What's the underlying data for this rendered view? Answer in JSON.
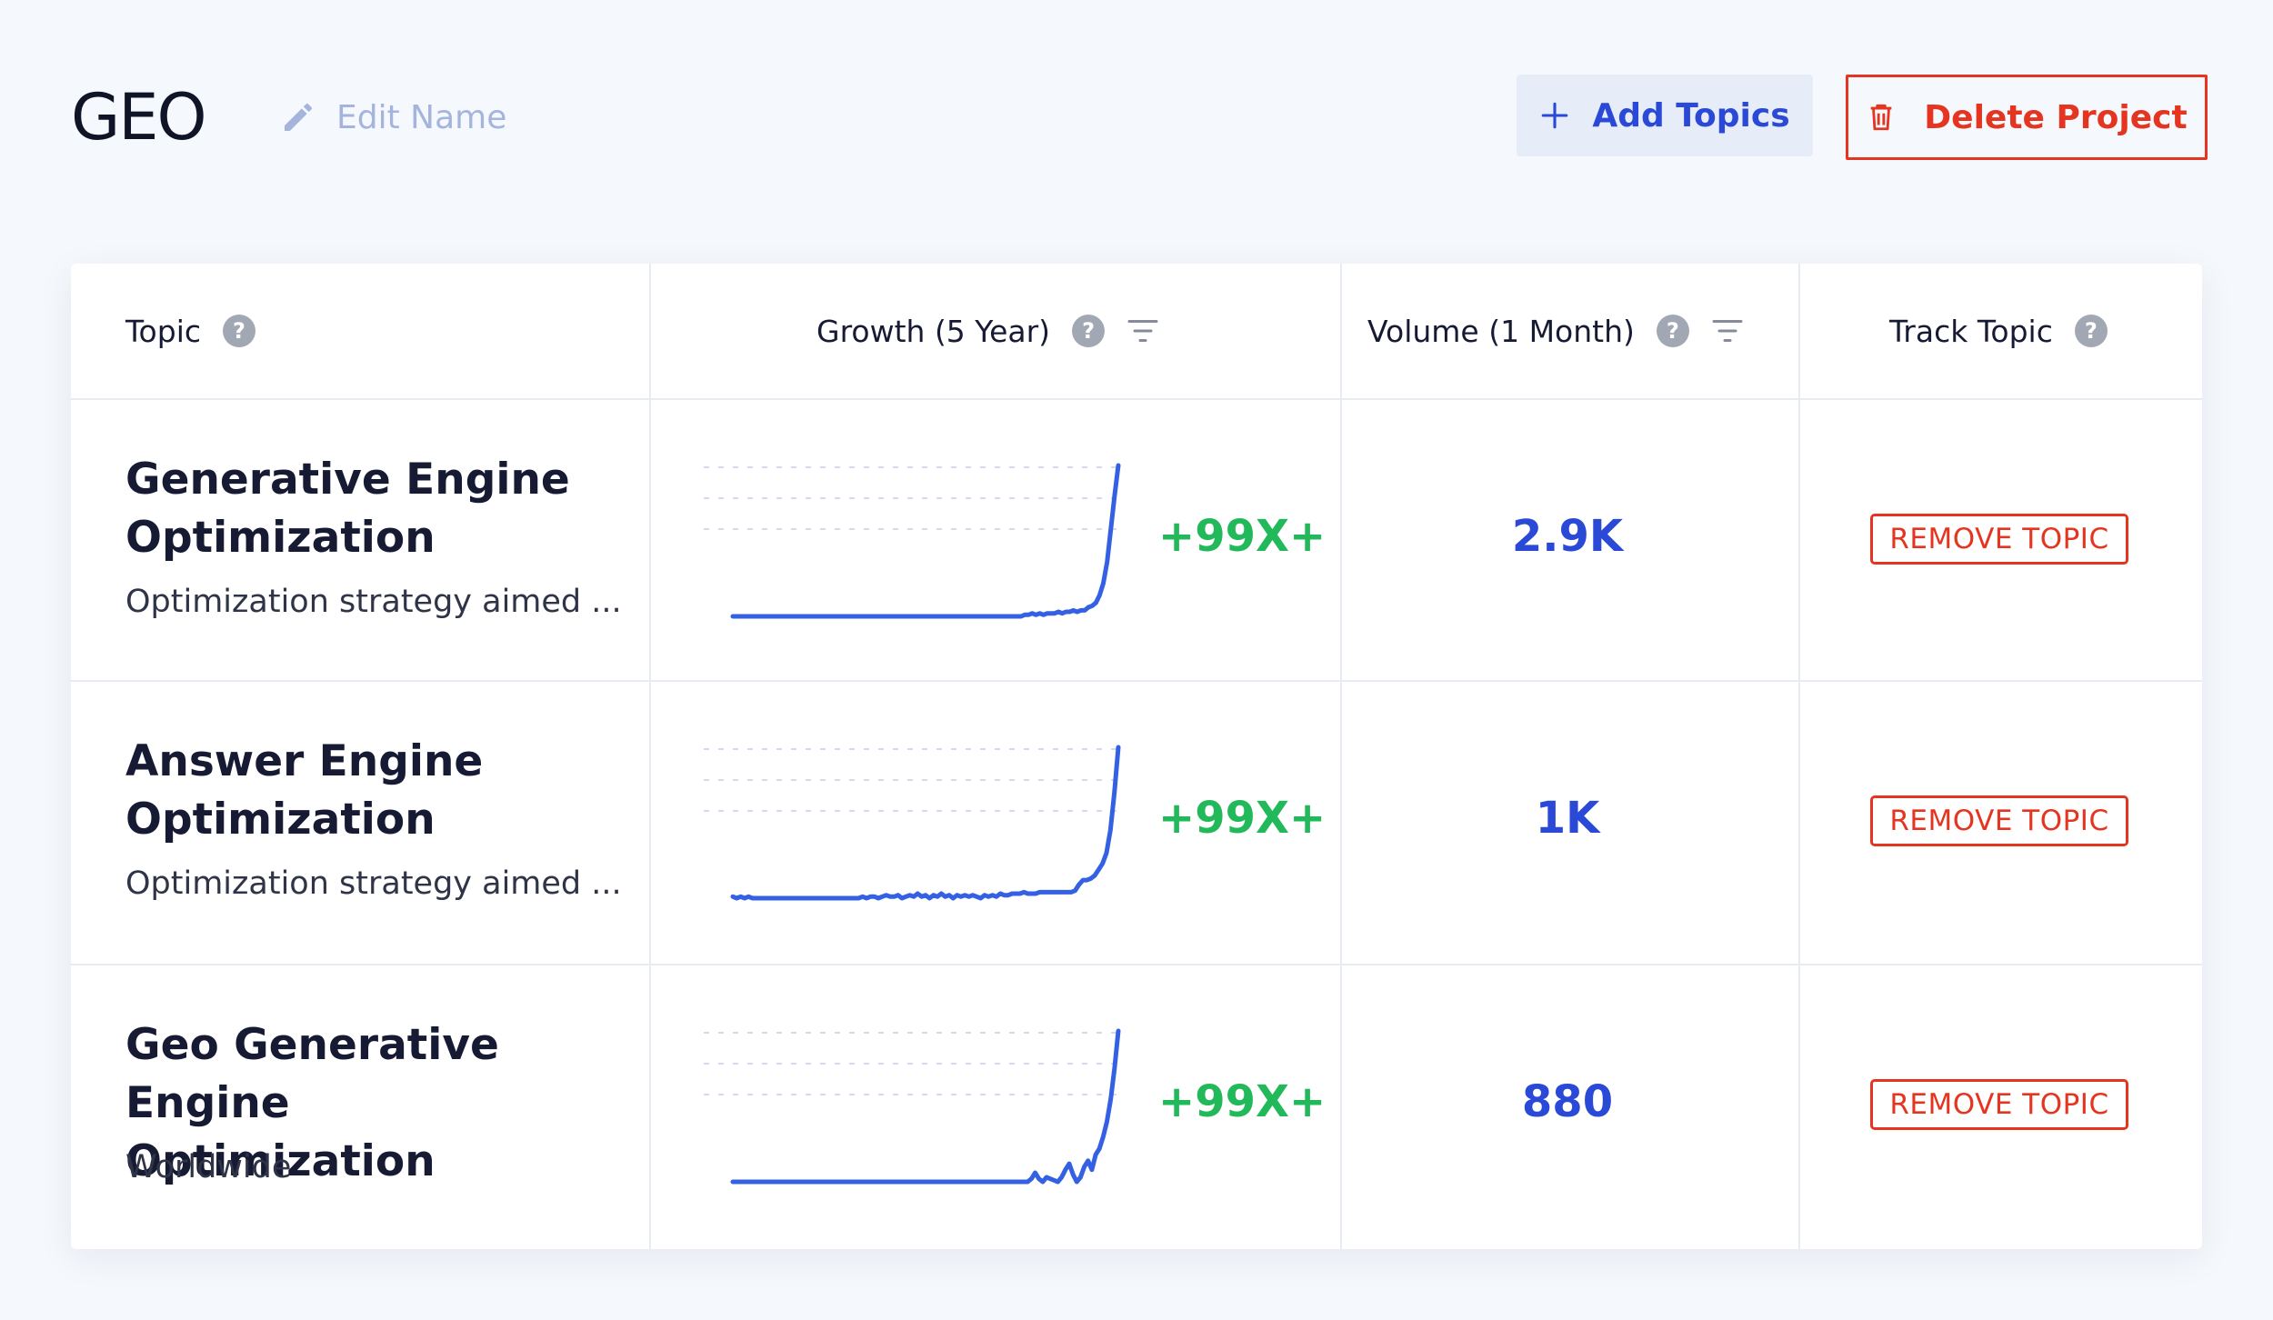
{
  "header": {
    "title": "GEO",
    "edit_name_label": "Edit Name",
    "add_topics_label": "Add Topics",
    "delete_project_label": "Delete Project"
  },
  "table": {
    "columns": {
      "topic": "Topic",
      "growth": "Growth (5 Year)",
      "volume": "Volume (1 Month)",
      "track": "Track Topic"
    },
    "help_glyph": "?",
    "rows": [
      {
        "name": "Generative Engine Optimization",
        "description": "Optimization strategy aimed ...",
        "growth": "+99X+",
        "volume": "2.9K",
        "action": "REMOVE TOPIC",
        "trend": [
          0,
          0,
          0,
          0,
          0,
          0,
          0,
          0,
          0,
          0,
          0,
          0,
          0,
          0,
          0,
          0,
          0,
          0,
          0,
          0,
          0,
          0,
          0,
          0,
          0,
          0,
          0,
          0,
          0,
          0,
          0,
          0,
          0,
          0,
          0,
          0,
          0,
          0,
          0,
          0,
          0,
          0,
          0,
          0,
          0,
          0,
          0,
          0,
          0,
          0,
          0,
          0,
          0,
          0,
          0,
          0,
          0,
          0,
          0,
          0,
          0,
          0,
          0,
          0,
          0,
          0,
          0,
          0,
          0,
          0,
          0,
          0,
          0,
          0,
          0,
          0,
          0,
          0,
          1,
          1,
          2,
          1,
          2,
          1,
          2,
          2,
          2,
          3,
          2,
          3,
          3,
          4,
          3,
          4,
          4,
          6,
          7,
          9,
          14,
          22,
          36,
          58,
          80,
          100
        ]
      },
      {
        "name": "Answer Engine Optimization",
        "description": "Optimization strategy aimed ...",
        "growth": "+99X+",
        "volume": "1K",
        "action": "REMOVE TOPIC",
        "trend": [
          1,
          0,
          1,
          0,
          1,
          0,
          0,
          0,
          0,
          0,
          0,
          0,
          0,
          0,
          0,
          0,
          0,
          0,
          0,
          0,
          0,
          0,
          0,
          0,
          0,
          0,
          0,
          0,
          0,
          0,
          0,
          0,
          0,
          1,
          0,
          1,
          1,
          0,
          1,
          2,
          1,
          1,
          2,
          0,
          1,
          2,
          1,
          3,
          1,
          2,
          0,
          2,
          1,
          3,
          1,
          2,
          0,
          2,
          1,
          2,
          1,
          2,
          1,
          0,
          2,
          1,
          2,
          1,
          3,
          2,
          2,
          3,
          3,
          3,
          4,
          3,
          3,
          3,
          4,
          4,
          4,
          4,
          4,
          4,
          4,
          4,
          4,
          5,
          9,
          12,
          12,
          13,
          15,
          19,
          23,
          30,
          45,
          70,
          100
        ]
      },
      {
        "name": "Geo Generative Engine Optimization",
        "description": "Worldwide",
        "growth": "+99X+",
        "volume": "880",
        "action": "REMOVE TOPIC",
        "trend": [
          0,
          0,
          0,
          0,
          0,
          0,
          0,
          0,
          0,
          0,
          0,
          0,
          0,
          0,
          0,
          0,
          0,
          0,
          0,
          0,
          0,
          0,
          0,
          0,
          0,
          0,
          0,
          0,
          0,
          0,
          0,
          0,
          0,
          0,
          0,
          0,
          0,
          0,
          0,
          0,
          0,
          0,
          0,
          0,
          0,
          0,
          0,
          0,
          0,
          0,
          0,
          0,
          0,
          0,
          0,
          0,
          0,
          0,
          0,
          0,
          0,
          0,
          0,
          0,
          0,
          0,
          0,
          0,
          0,
          0,
          0,
          0,
          0,
          0,
          0,
          0,
          0,
          0,
          0,
          2,
          6,
          2,
          0,
          3,
          2,
          1,
          0,
          3,
          8,
          12,
          5,
          0,
          3,
          10,
          14,
          8,
          18,
          22,
          30,
          40,
          55,
          75,
          100
        ]
      }
    ]
  },
  "colors": {
    "growth": "#22b95a",
    "volume": "#2a49d6",
    "danger": "#e5341f",
    "sparkline": "#3461e3",
    "gridline": "#d5daf0"
  }
}
